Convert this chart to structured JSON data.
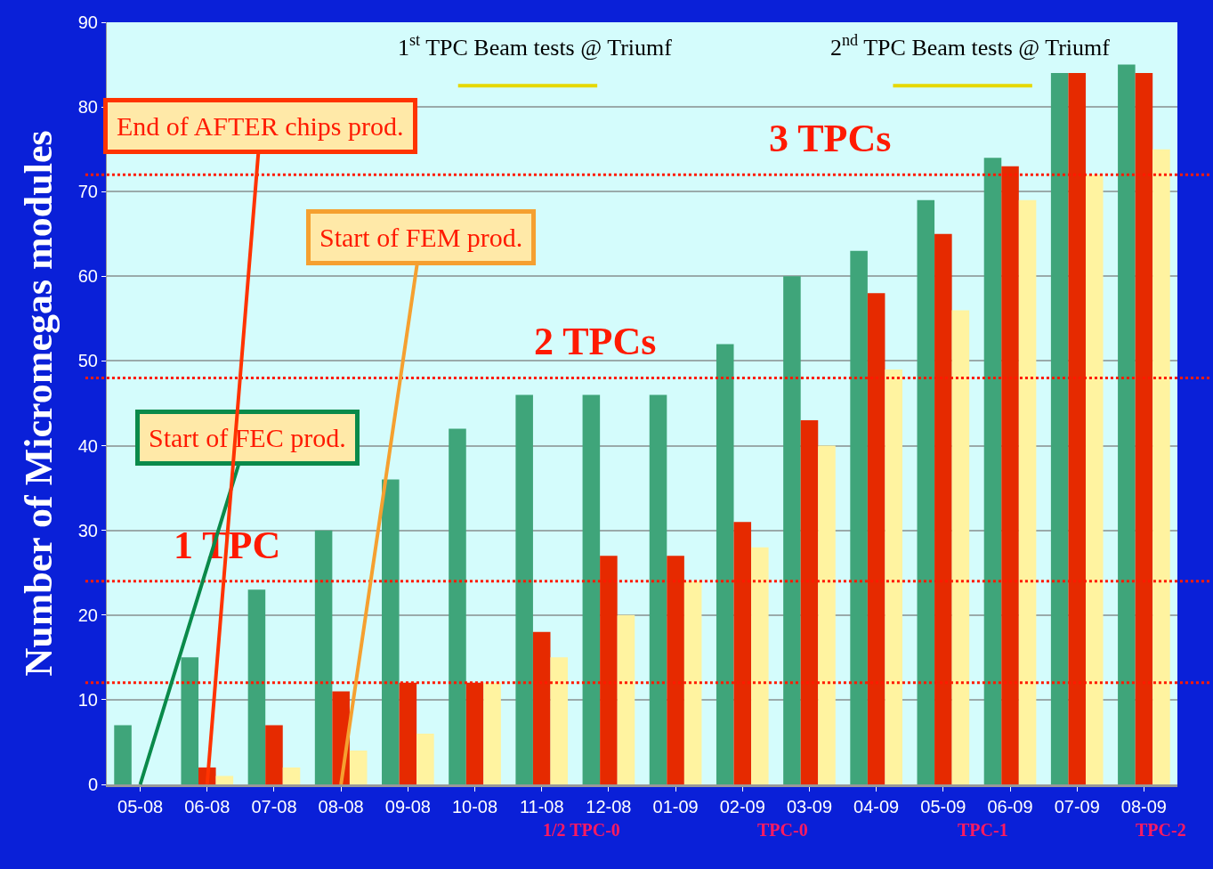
{
  "chart_data": {
    "type": "bar",
    "ylabel": "Number of Micromegas modules",
    "categories": [
      "05-08",
      "06-08",
      "07-08",
      "08-08",
      "09-08",
      "10-08",
      "11-08",
      "12-08",
      "01-09",
      "02-09",
      "03-09",
      "04-09",
      "05-09",
      "06-09",
      "07-09",
      "08-09"
    ],
    "series": [
      {
        "color": "#3fa57a",
        "values": [
          7,
          15,
          23,
          30,
          36,
          42,
          46,
          46,
          46,
          52,
          60,
          63,
          69,
          74,
          84,
          85
        ]
      },
      {
        "color": "#e62a00",
        "values": [
          0,
          2,
          7,
          11,
          12,
          12,
          18,
          27,
          27,
          31,
          43,
          58,
          65,
          73,
          84,
          84
        ]
      },
      {
        "color": "#fff3a0",
        "values": [
          0,
          1,
          2,
          4,
          6,
          12,
          15,
          20,
          24,
          28,
          40,
          49,
          56,
          69,
          72,
          75
        ]
      }
    ],
    "ylim": [
      0,
      90
    ],
    "yticks": [
      0,
      10,
      20,
      30,
      40,
      50,
      60,
      70,
      80,
      90
    ],
    "grid": "y",
    "ref_lines": [
      {
        "axis": "y",
        "value": 12,
        "label": null,
        "color": "#ff1a00",
        "line_style": "dotted"
      },
      {
        "axis": "y",
        "value": 24,
        "label": "1 TPC",
        "color": "#ff1a00",
        "line_style": "dotted"
      },
      {
        "axis": "y",
        "value": 48,
        "label": "2 TPCs",
        "color": "#ff1a00",
        "line_style": "dotted"
      },
      {
        "axis": "y",
        "value": 72,
        "label": "3 TPCs",
        "color": "#ff1a00",
        "line_style": "dotted"
      }
    ],
    "annotations": [
      {
        "text": "Start of FEC prod.",
        "x": "05-08",
        "y": 0
      },
      {
        "text": "End of AFTER chips prod.",
        "x": "06-08",
        "y": 0
      },
      {
        "text": "Start of FEM prod.",
        "x": "08-08",
        "y": 0
      },
      "1$^{st}$ TPC Beam tests @ Triumf",
      "2$^{nd}$ TPC Beam tests @ Triumf",
      "1/2 TPC-0",
      "TPC-0",
      "TPC-1",
      "TPC-2"
    ]
  }
}
